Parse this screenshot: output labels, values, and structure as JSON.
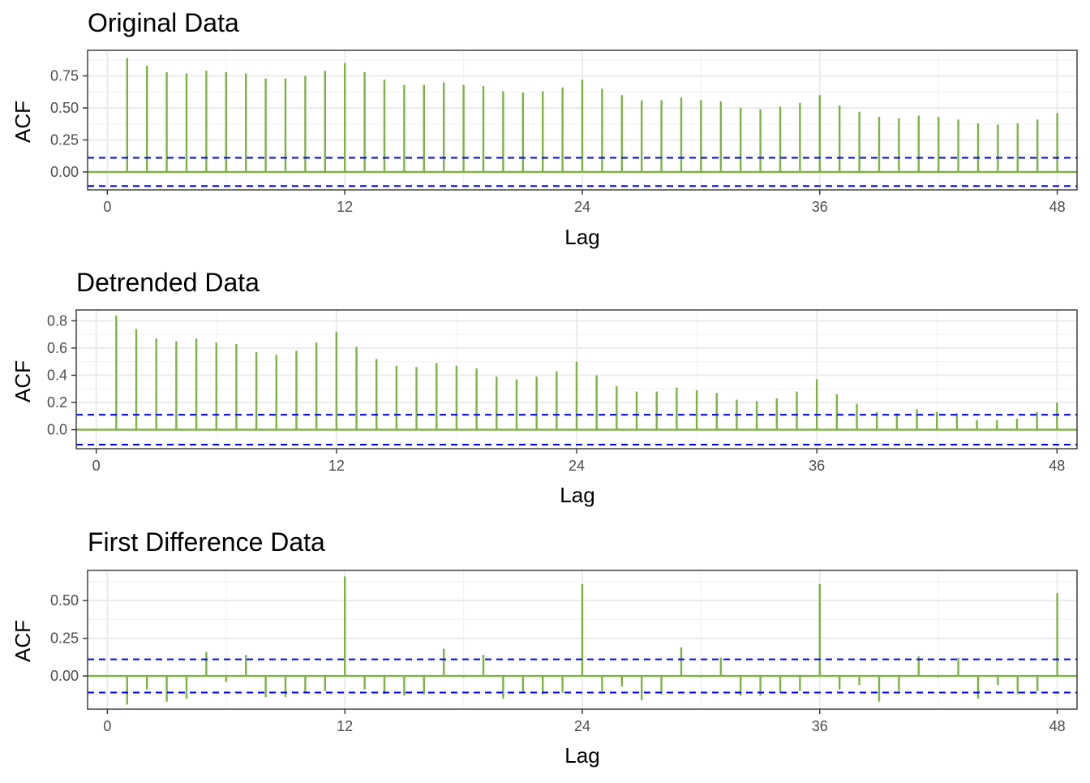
{
  "colors": {
    "bar": "#7cb342",
    "ci": "#0000ff",
    "grid_major": "#ebebeb",
    "grid_minor": "#f2f2f2",
    "panel_border": "#333333"
  },
  "chart_data": [
    {
      "type": "bar",
      "title": "Original Data",
      "xlabel": "Lag",
      "ylabel": "ACF",
      "xlim": [
        -1,
        49
      ],
      "ylim": [
        -0.14,
        0.95
      ],
      "x_ticks": [
        0,
        12,
        24,
        36,
        48
      ],
      "y_ticks": [
        0.0,
        0.25,
        0.5,
        0.75
      ],
      "y_tick_labels": [
        "0.00",
        "0.25",
        "0.50",
        "0.75"
      ],
      "ci": 0.11,
      "lags": [
        1,
        2,
        3,
        4,
        5,
        6,
        7,
        8,
        9,
        10,
        11,
        12,
        13,
        14,
        15,
        16,
        17,
        18,
        19,
        20,
        21,
        22,
        23,
        24,
        25,
        26,
        27,
        28,
        29,
        30,
        31,
        32,
        33,
        34,
        35,
        36,
        37,
        38,
        39,
        40,
        41,
        42,
        43,
        44,
        45,
        46,
        47,
        48
      ],
      "values": [
        0.89,
        0.83,
        0.78,
        0.77,
        0.79,
        0.78,
        0.77,
        0.73,
        0.73,
        0.75,
        0.79,
        0.85,
        0.78,
        0.72,
        0.68,
        0.68,
        0.7,
        0.68,
        0.67,
        0.63,
        0.62,
        0.63,
        0.66,
        0.72,
        0.65,
        0.6,
        0.56,
        0.56,
        0.58,
        0.56,
        0.55,
        0.5,
        0.49,
        0.51,
        0.54,
        0.6,
        0.52,
        0.47,
        0.43,
        0.42,
        0.44,
        0.43,
        0.41,
        0.38,
        0.37,
        0.38,
        0.41,
        0.46
      ]
    },
    {
      "type": "bar",
      "title": "Detrended Data",
      "xlabel": "Lag",
      "ylabel": "ACF",
      "xlim": [
        -1,
        49
      ],
      "ylim": [
        -0.14,
        0.88
      ],
      "x_ticks": [
        0,
        12,
        24,
        36,
        48
      ],
      "y_ticks": [
        0.0,
        0.2,
        0.4,
        0.6,
        0.8
      ],
      "y_tick_labels": [
        "0.0",
        "0.2",
        "0.4",
        "0.6",
        "0.8"
      ],
      "ci": 0.11,
      "lags": [
        1,
        2,
        3,
        4,
        5,
        6,
        7,
        8,
        9,
        10,
        11,
        12,
        13,
        14,
        15,
        16,
        17,
        18,
        19,
        20,
        21,
        22,
        23,
        24,
        25,
        26,
        27,
        28,
        29,
        30,
        31,
        32,
        33,
        34,
        35,
        36,
        37,
        38,
        39,
        40,
        41,
        42,
        43,
        44,
        45,
        46,
        47,
        48
      ],
      "values": [
        0.84,
        0.74,
        0.67,
        0.65,
        0.67,
        0.64,
        0.63,
        0.57,
        0.55,
        0.58,
        0.64,
        0.72,
        0.61,
        0.52,
        0.47,
        0.46,
        0.49,
        0.47,
        0.45,
        0.39,
        0.37,
        0.39,
        0.43,
        0.5,
        0.4,
        0.32,
        0.28,
        0.28,
        0.31,
        0.29,
        0.27,
        0.22,
        0.21,
        0.23,
        0.28,
        0.37,
        0.26,
        0.19,
        0.13,
        0.12,
        0.15,
        0.13,
        0.12,
        0.07,
        0.07,
        0.08,
        0.13,
        0.2
      ]
    },
    {
      "type": "bar",
      "title": "First Difference Data",
      "xlabel": "Lag",
      "ylabel": "ACF",
      "xlim": [
        -1,
        49
      ],
      "ylim": [
        -0.22,
        0.7
      ],
      "x_ticks": [
        0,
        12,
        24,
        36,
        48
      ],
      "y_ticks": [
        0.0,
        0.25,
        0.5
      ],
      "y_tick_labels": [
        "0.00",
        "0.25",
        "0.50"
      ],
      "ci": 0.11,
      "lags": [
        1,
        2,
        3,
        4,
        5,
        6,
        7,
        8,
        9,
        10,
        11,
        12,
        13,
        14,
        15,
        16,
        17,
        18,
        19,
        20,
        21,
        22,
        23,
        24,
        25,
        26,
        27,
        28,
        29,
        30,
        31,
        32,
        33,
        34,
        35,
        36,
        37,
        38,
        39,
        40,
        41,
        42,
        43,
        44,
        45,
        46,
        47,
        48
      ],
      "values": [
        -0.19,
        -0.09,
        -0.17,
        -0.15,
        0.16,
        -0.04,
        0.14,
        -0.14,
        -0.14,
        -0.11,
        -0.1,
        0.66,
        -0.09,
        -0.12,
        -0.13,
        -0.12,
        0.18,
        -0.01,
        0.14,
        -0.15,
        -0.11,
        -0.12,
        -0.11,
        0.61,
        -0.1,
        -0.07,
        -0.16,
        -0.12,
        0.19,
        -0.01,
        0.12,
        -0.13,
        -0.13,
        -0.11,
        -0.1,
        0.61,
        -0.09,
        -0.06,
        -0.17,
        -0.1,
        0.13,
        -0.01,
        0.12,
        -0.15,
        -0.06,
        -0.12,
        -0.1,
        0.55
      ]
    }
  ]
}
